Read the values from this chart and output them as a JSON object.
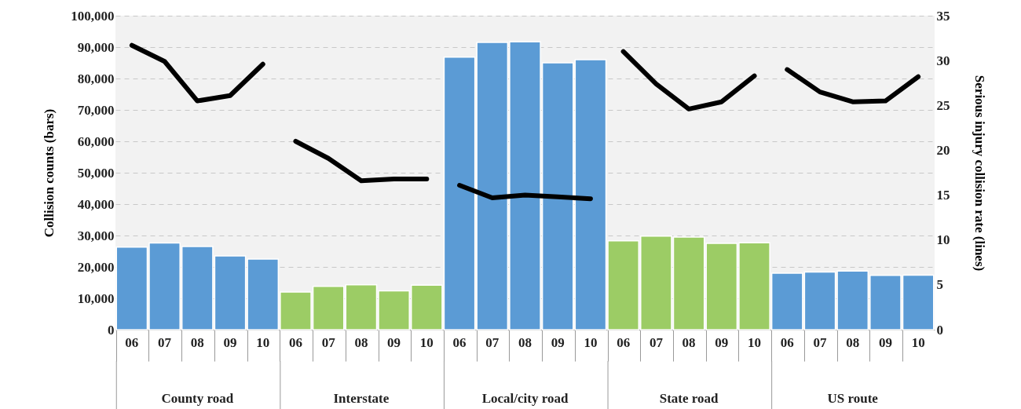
{
  "chart_data": {
    "type": "bar",
    "ylabel": "Collision counts (bars)",
    "y2label": "Serious injury collision rate (lines)",
    "categories": [
      "06",
      "07",
      "08",
      "09",
      "10",
      "06",
      "07",
      "08",
      "09",
      "10",
      "06",
      "07",
      "08",
      "09",
      "10",
      "06",
      "07",
      "08",
      "09",
      "10",
      "06",
      "07",
      "08",
      "09",
      "10"
    ],
    "series": [
      {
        "colors": [
          "#5b9bd5",
          "#5b9bd5",
          "#5b9bd5",
          "#5b9bd5",
          "#5b9bd5",
          "#9ccc65",
          "#9ccc65",
          "#9ccc65",
          "#9ccc65",
          "#9ccc65",
          "#5b9bd5",
          "#5b9bd5",
          "#5b9bd5",
          "#5b9bd5",
          "#5b9bd5",
          "#9ccc65",
          "#9ccc65",
          "#9ccc65",
          "#9ccc65",
          "#9ccc65",
          "#5b9bd5",
          "#5b9bd5",
          "#5b9bd5",
          "#5b9bd5",
          "#5b9bd5"
        ],
        "values": [
          26300,
          27600,
          26500,
          23500,
          22500,
          12000,
          13800,
          14300,
          12400,
          14200,
          86800,
          91500,
          91700,
          85000,
          86000,
          28300,
          29800,
          29500,
          27500,
          27700,
          18000,
          18400,
          18700,
          17300,
          17400
        ]
      },
      {
        "type": "line",
        "axis": "y2",
        "color": "#000000",
        "values": [
          31.7,
          29.9,
          25.5,
          26.1,
          29.6,
          null,
          null,
          null,
          null,
          null,
          null,
          null,
          null,
          null,
          null,
          null,
          null,
          null,
          null,
          null,
          null,
          null,
          null,
          null,
          null
        ]
      },
      {
        "type": "line",
        "axis": "y2",
        "color": "#000000",
        "values": [
          null,
          null,
          null,
          null,
          null,
          21.0,
          19.1,
          16.6,
          16.8,
          16.8,
          null,
          null,
          null,
          null,
          null,
          null,
          null,
          null,
          null,
          null,
          null,
          null,
          null,
          null,
          null
        ]
      },
      {
        "type": "line",
        "axis": "y2",
        "color": "#000000",
        "values": [
          null,
          null,
          null,
          null,
          null,
          null,
          null,
          null,
          null,
          null,
          16.1,
          14.7,
          15.0,
          14.8,
          14.6,
          null,
          null,
          null,
          null,
          null,
          null,
          null,
          null,
          null,
          null
        ]
      },
      {
        "type": "line",
        "axis": "y2",
        "color": "#000000",
        "values": [
          null,
          null,
          null,
          null,
          null,
          null,
          null,
          null,
          null,
          null,
          null,
          null,
          null,
          null,
          null,
          31.0,
          27.4,
          24.6,
          25.4,
          28.3,
          null,
          null,
          null,
          null,
          null
        ]
      },
      {
        "type": "line",
        "axis": "y2",
        "color": "#000000",
        "values": [
          null,
          null,
          null,
          null,
          null,
          null,
          null,
          null,
          null,
          null,
          null,
          null,
          null,
          null,
          null,
          null,
          null,
          null,
          null,
          null,
          29.0,
          26.5,
          25.4,
          25.5,
          28.2
        ]
      }
    ],
    "annotations": [
      "County road",
      "Interstate",
      "Local/city road",
      "State road",
      "US route"
    ],
    "ylim": [
      0,
      100000
    ],
    "yticks": [
      {
        "value": 0,
        "label": "0"
      },
      {
        "value": 10000,
        "label": "10,000"
      },
      {
        "value": 20000,
        "label": "20,000"
      },
      {
        "value": 30000,
        "label": "30,000"
      },
      {
        "value": 40000,
        "label": "40,000"
      },
      {
        "value": 50000,
        "label": "50,000"
      },
      {
        "value": 60000,
        "label": "60,000"
      },
      {
        "value": 70000,
        "label": "70,000"
      },
      {
        "value": 80000,
        "label": "80,000"
      },
      {
        "value": 90000,
        "label": "90,000"
      },
      {
        "value": 100000,
        "label": "100,000"
      }
    ],
    "y2lim": [
      0,
      35
    ],
    "y2ticks": [
      0,
      5,
      10,
      15,
      20,
      25,
      30,
      35
    ],
    "grid": "y"
  }
}
